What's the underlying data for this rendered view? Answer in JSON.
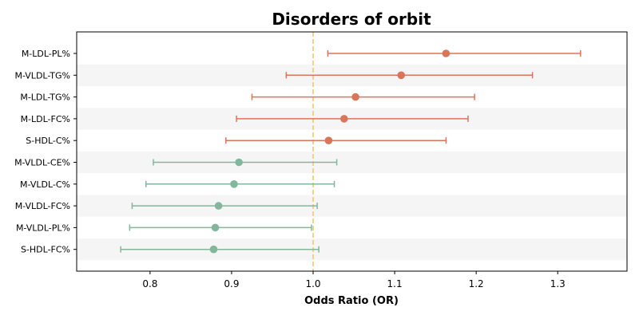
{
  "chart_data": {
    "type": "forest",
    "title": "Disorders of orbit",
    "xlabel": "Odds Ratio (OR)",
    "ylabel": "",
    "xlim": [
      0.71,
      1.385
    ],
    "xticks": [
      0.8,
      0.9,
      1.0,
      1.1,
      1.2,
      1.3
    ],
    "xtick_labels": [
      "0.8",
      "0.9",
      "1.0",
      "1.1",
      "1.2",
      "1.3"
    ],
    "reference_line": 1.0,
    "grid": false,
    "colors": {
      "positive": "#d9765a",
      "negative": "#82b79c",
      "reference": "#f0c26a",
      "band": "#f5f5f5"
    },
    "categories": [
      "M-LDL-PL%",
      "M-VLDL-TG%",
      "M-LDL-TG%",
      "M-LDL-FC%",
      "S-HDL-C%",
      "M-VLDL-CE%",
      "M-VLDL-C%",
      "M-VLDL-FC%",
      "M-VLDL-PL%",
      "S-HDL-FC%"
    ],
    "or": [
      1.163,
      1.108,
      1.052,
      1.038,
      1.019,
      0.909,
      0.903,
      0.884,
      0.88,
      0.878
    ],
    "lower": [
      1.018,
      0.967,
      0.925,
      0.906,
      0.893,
      0.804,
      0.795,
      0.778,
      0.775,
      0.764
    ],
    "upper": [
      1.328,
      1.269,
      1.198,
      1.19,
      1.163,
      1.029,
      1.026,
      1.005,
      0.998,
      1.007
    ]
  }
}
